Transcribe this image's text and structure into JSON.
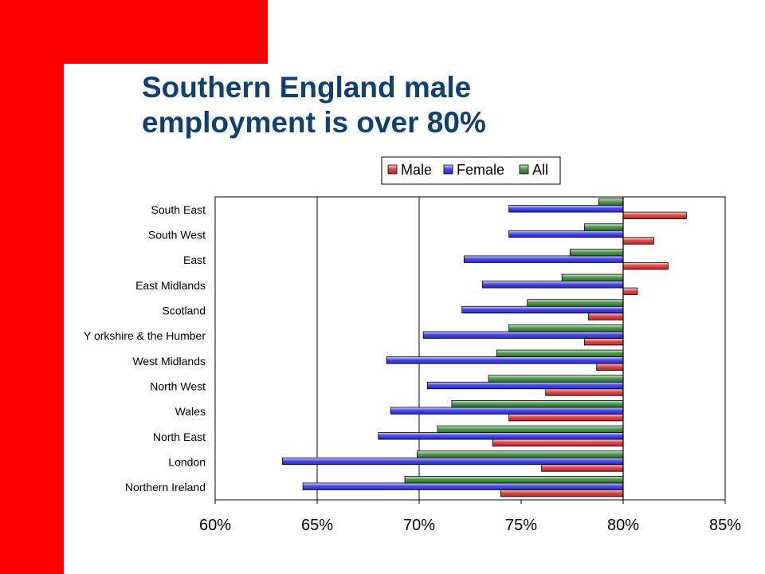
{
  "slide": {
    "title_line1": "Southern England male",
    "title_line2": "employment is over 80%"
  },
  "colors": {
    "accent_red": "#ff0000",
    "title_blue": "#0f3f73",
    "male": "#e24a4a",
    "female": "#4b4bf0",
    "all": "#4f9a4f"
  },
  "chart_data": {
    "type": "bar",
    "orientation": "horizontal",
    "xlim": [
      0.6,
      0.85
    ],
    "xticks": [
      "60%",
      "65%",
      "70%",
      "75%",
      "80%",
      "85%"
    ],
    "xtick_values": [
      0.6,
      0.65,
      0.7,
      0.75,
      0.8,
      0.85
    ],
    "gridlines_at": [
      0.65,
      0.7,
      0.8
    ],
    "legend_position": "top-center",
    "categories": [
      "South East",
      "South West",
      "East ",
      "East Midlands",
      "Scotland",
      "Y orkshire & the Humber",
      "West Midlands",
      "North West",
      "Wales",
      "North East",
      "London",
      "Northern Ireland"
    ],
    "series": [
      {
        "name": "Male",
        "color": "#e24a4a",
        "values": [
          0.831,
          0.815,
          0.822,
          0.807,
          0.783,
          0.781,
          0.787,
          0.762,
          0.744,
          0.736,
          0.76,
          0.74
        ]
      },
      {
        "name": "Female",
        "color": "#4b4bf0",
        "values": [
          0.744,
          0.744,
          0.722,
          0.731,
          0.721,
          0.702,
          0.684,
          0.704,
          0.686,
          0.68,
          0.633,
          0.643
        ]
      },
      {
        "name": "All",
        "color": "#4f9a4f",
        "values": [
          0.788,
          0.781,
          0.774,
          0.77,
          0.753,
          0.744,
          0.738,
          0.734,
          0.716,
          0.709,
          0.699,
          0.693
        ]
      }
    ]
  }
}
